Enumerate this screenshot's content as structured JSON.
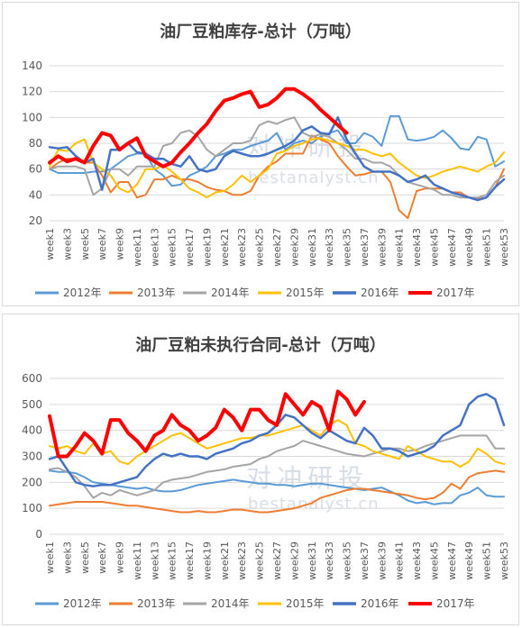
{
  "watermark": {
    "cn": "对冲研投",
    "en": "bestanalyst.cn"
  },
  "chart_data": [
    {
      "type": "line",
      "title": "油厂豆粕库存-总计（万吨）",
      "ylim": [
        20,
        140
      ],
      "yticks": [
        20,
        40,
        60,
        80,
        100,
        120,
        140
      ],
      "x_tick_labels": [
        "week1",
        "week3",
        "week5",
        "week7",
        "week9",
        "week11",
        "week13",
        "week15",
        "week17",
        "week19",
        "week21",
        "week23",
        "week25",
        "week27",
        "week29",
        "week31",
        "week33",
        "week35",
        "week37",
        "week39",
        "week41",
        "week43",
        "week45",
        "week47",
        "week49",
        "week51",
        "week53"
      ],
      "legend_position": "bottom",
      "grid": true,
      "series": [
        {
          "name": "2012年",
          "color": "#5b9bd5",
          "width": 2,
          "values": [
            60,
            57,
            57,
            57,
            57,
            58,
            58,
            60,
            65,
            70,
            72,
            72,
            60,
            55,
            47,
            48,
            55,
            58,
            62,
            70,
            72,
            75,
            75,
            78,
            80,
            82,
            88,
            75,
            80,
            82,
            80,
            85,
            88,
            90,
            80,
            80,
            88,
            85,
            78,
            101,
            101,
            83,
            82,
            83,
            85,
            90,
            84,
            76,
            75,
            85,
            83,
            62,
            66
          ]
        },
        {
          "name": "2013年",
          "color": "#ed7d31",
          "width": 2,
          "values": [
            60,
            65,
            68,
            68,
            65,
            65,
            55,
            42,
            50,
            50,
            38,
            40,
            52,
            52,
            55,
            52,
            52,
            50,
            46,
            44,
            43,
            40,
            40,
            43,
            55,
            62,
            66,
            72,
            72,
            72,
            86,
            83,
            80,
            70,
            62,
            55,
            56,
            58,
            58,
            50,
            28,
            22,
            43,
            45,
            45,
            45,
            42,
            42,
            38,
            37,
            38,
            46,
            60
          ]
        },
        {
          "name": "2014年",
          "color": "#a5a5a5",
          "width": 2,
          "values": [
            60,
            62,
            62,
            62,
            60,
            40,
            45,
            60,
            60,
            55,
            62,
            62,
            62,
            78,
            80,
            88,
            90,
            85,
            75,
            70,
            75,
            80,
            80,
            82,
            94,
            97,
            95,
            98,
            100,
            88,
            85,
            87,
            85,
            80,
            75,
            68,
            68,
            65,
            65,
            62,
            55,
            50,
            48,
            46,
            44,
            40,
            40,
            38,
            38,
            38,
            40,
            50,
            55
          ]
        },
        {
          "name": "2015年",
          "color": "#ffc000",
          "width": 2,
          "values": [
            62,
            75,
            74,
            80,
            83,
            65,
            60,
            55,
            45,
            42,
            48,
            60,
            60,
            63,
            58,
            52,
            45,
            42,
            38,
            42,
            43,
            48,
            55,
            50,
            55,
            60,
            72,
            74,
            78,
            80,
            83,
            84,
            82,
            80,
            78,
            75,
            75,
            72,
            70,
            72,
            65,
            60,
            55,
            53,
            55,
            58,
            60,
            62,
            60,
            58,
            62,
            65,
            73
          ]
        },
        {
          "name": "2016年",
          "color": "#4472c4",
          "width": 2.5,
          "values": [
            77,
            76,
            77,
            70,
            65,
            68,
            44,
            75,
            75,
            80,
            73,
            72,
            68,
            68,
            64,
            62,
            70,
            60,
            58,
            60,
            70,
            74,
            72,
            70,
            70,
            72,
            75,
            78,
            82,
            90,
            93,
            88,
            87,
            100,
            83,
            72,
            62,
            58,
            58,
            58,
            55,
            50,
            52,
            55,
            48,
            45,
            42,
            40,
            38,
            36,
            38,
            46,
            52
          ]
        },
        {
          "name": "2017年",
          "color": "#ff0000",
          "width": 4,
          "values": [
            65,
            70,
            66,
            68,
            65,
            78,
            88,
            86,
            75,
            80,
            84,
            70,
            66,
            62,
            65,
            73,
            80,
            88,
            95,
            105,
            113,
            115,
            118,
            120,
            108,
            110,
            115,
            122,
            122,
            118,
            113,
            106,
            100,
            94,
            88
          ]
        }
      ]
    },
    {
      "type": "line",
      "title": "油厂豆粕未执行合同-总计（万吨）",
      "ylim": [
        0,
        600
      ],
      "yticks": [
        0,
        100,
        200,
        300,
        400,
        500,
        600
      ],
      "x_tick_labels": [
        "week1",
        "week3",
        "week5",
        "week7",
        "week9",
        "week11",
        "week13",
        "week15",
        "week17",
        "week19",
        "week21",
        "week23",
        "week25",
        "week27",
        "week29",
        "week31",
        "week33",
        "week35",
        "week37",
        "week39",
        "week41",
        "week43",
        "week45",
        "week47",
        "week49",
        "week51",
        "week53"
      ],
      "legend_position": "bottom",
      "grid": true,
      "series": [
        {
          "name": "2012年",
          "color": "#5b9bd5",
          "width": 2,
          "values": [
            245,
            240,
            240,
            235,
            220,
            200,
            195,
            190,
            185,
            180,
            175,
            180,
            170,
            165,
            165,
            170,
            180,
            190,
            195,
            200,
            205,
            210,
            205,
            200,
            195,
            195,
            190,
            190,
            185,
            190,
            195,
            195,
            190,
            185,
            180,
            175,
            170,
            175,
            180,
            165,
            150,
            130,
            120,
            125,
            115,
            120,
            120,
            150,
            160,
            180,
            150,
            145,
            145
          ]
        },
        {
          "name": "2013年",
          "color": "#ed7d31",
          "width": 2,
          "values": [
            110,
            115,
            120,
            125,
            125,
            125,
            125,
            120,
            115,
            110,
            110,
            105,
            100,
            95,
            90,
            85,
            85,
            90,
            85,
            85,
            90,
            95,
            95,
            90,
            85,
            85,
            90,
            95,
            100,
            110,
            120,
            140,
            150,
            160,
            170,
            175,
            175,
            170,
            165,
            160,
            155,
            150,
            140,
            135,
            140,
            160,
            195,
            175,
            220,
            235,
            240,
            245,
            240
          ]
        },
        {
          "name": "2014年",
          "color": "#a5a5a5",
          "width": 2,
          "values": [
            250,
            255,
            240,
            220,
            185,
            140,
            160,
            150,
            170,
            160,
            150,
            160,
            170,
            200,
            210,
            215,
            220,
            230,
            240,
            245,
            250,
            260,
            265,
            270,
            290,
            300,
            320,
            330,
            340,
            360,
            350,
            340,
            330,
            320,
            310,
            305,
            300,
            310,
            320,
            330,
            330,
            320,
            325,
            340,
            350,
            360,
            370,
            380,
            380,
            380,
            380,
            330,
            330
          ]
        },
        {
          "name": "2015年",
          "color": "#ffc000",
          "width": 2,
          "values": [
            340,
            330,
            340,
            320,
            310,
            350,
            310,
            320,
            280,
            270,
            300,
            320,
            340,
            360,
            380,
            390,
            370,
            350,
            330,
            340,
            350,
            360,
            370,
            370,
            380,
            380,
            390,
            400,
            410,
            420,
            400,
            380,
            420,
            440,
            420,
            350,
            340,
            320,
            310,
            300,
            290,
            340,
            320,
            300,
            290,
            280,
            280,
            260,
            280,
            330,
            310,
            280,
            270
          ]
        },
        {
          "name": "2016年",
          "color": "#4472c4",
          "width": 2.5,
          "values": [
            290,
            300,
            250,
            200,
            190,
            185,
            190,
            190,
            200,
            210,
            220,
            260,
            290,
            310,
            300,
            310,
            300,
            300,
            290,
            310,
            320,
            330,
            350,
            360,
            380,
            390,
            420,
            460,
            450,
            420,
            390,
            370,
            400,
            380,
            360,
            350,
            410,
            380,
            330,
            330,
            320,
            300,
            310,
            320,
            340,
            380,
            400,
            420,
            500,
            530,
            540,
            520,
            420
          ]
        },
        {
          "name": "2017年",
          "color": "#ff0000",
          "width": 4,
          "values": [
            455,
            300,
            300,
            340,
            390,
            360,
            310,
            440,
            440,
            390,
            360,
            320,
            380,
            400,
            460,
            420,
            400,
            360,
            380,
            410,
            480,
            450,
            400,
            480,
            480,
            440,
            420,
            540,
            500,
            460,
            510,
            490,
            400,
            550,
            520,
            460,
            510
          ]
        }
      ]
    }
  ]
}
